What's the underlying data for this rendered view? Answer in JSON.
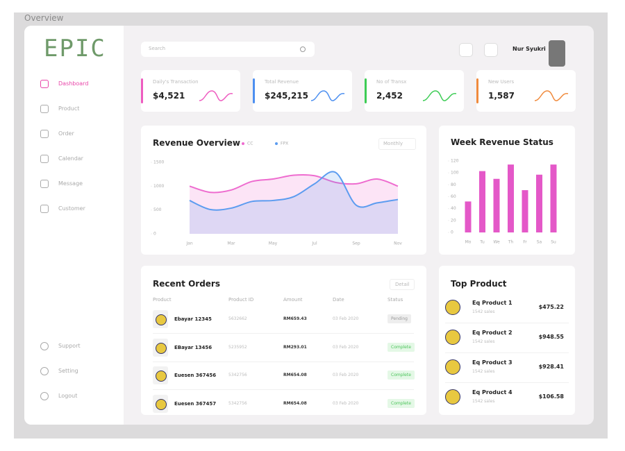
{
  "title": "Overview",
  "logo": "EPIC",
  "nav": {
    "items": [
      "Dashboard",
      "Product",
      "Order",
      "Calendar",
      "Message",
      "Customer"
    ],
    "bottom": [
      "Support",
      "Setting",
      "Logout"
    ]
  },
  "header": {
    "search": "Search",
    "user": "Nur Syukri"
  },
  "stats": [
    {
      "label": "Daily's Transaction",
      "value": "$4,521",
      "color": "#ee5cc0"
    },
    {
      "label": "Total Revenue",
      "value": "$245,215",
      "color": "#4c8ff0"
    },
    {
      "label": "No of Transx",
      "value": "2,452",
      "color": "#3dcc55"
    },
    {
      "label": "New Users",
      "value": "1,587",
      "color": "#f08a3c"
    }
  ],
  "revenue_overview": {
    "type": "line",
    "title": "Revenue Overview",
    "filter": "Monthly",
    "categories": [
      "Jan",
      null,
      "Mar",
      null,
      "May",
      null,
      "Jul",
      null,
      "Sep",
      null,
      "Nov"
    ],
    "series": [
      {
        "name": "CC",
        "color": "#ee6ccf",
        "values": [
          1000,
          870,
          920,
          1100,
          1150,
          1230,
          1220,
          1080,
          1050,
          1150,
          1000
        ]
      },
      {
        "name": "FPX",
        "color": "#5b9cf0",
        "values": [
          700,
          510,
          540,
          680,
          700,
          780,
          1050,
          1290,
          600,
          650,
          720
        ]
      }
    ],
    "ylim": [
      0,
      1500
    ],
    "yticks": [
      0,
      500,
      1000,
      1500
    ]
  },
  "week_revenue": {
    "type": "bar",
    "title": "Week Revenue Status",
    "categories": [
      "Mo",
      "Tu",
      "We",
      "Th",
      "Fr",
      "Sa",
      "Su"
    ],
    "values": [
      52,
      103,
      90,
      114,
      71,
      97,
      114
    ],
    "color": "#e458c8",
    "ylim": [
      0,
      120
    ],
    "yticks": [
      0,
      20,
      40,
      60,
      80,
      100,
      120
    ]
  },
  "orders": {
    "title": "Recent Orders",
    "button": "Detail",
    "columns": [
      "Product",
      "Product ID",
      "Amount",
      "Date",
      "Status"
    ],
    "rows": [
      [
        "Ebayar 12345",
        "5632662",
        "RM659.43",
        "03 Feb 2020",
        "Pending"
      ],
      [
        "EBayar 13456",
        "5235952",
        "RM293.01",
        "03 Feb 2020",
        "Complete"
      ],
      [
        "Euesen 367456",
        "5342756",
        "RM654.08",
        "03 Feb 2020",
        "Complete"
      ],
      [
        "Euesen 367457",
        "5342756",
        "RM654.08",
        "03 Feb 2020",
        "Complete"
      ]
    ]
  },
  "top_products": {
    "title": "Top Product",
    "items": [
      {
        "name": "Eq Product 1",
        "sales": "1542 sales",
        "price": "$475.22"
      },
      {
        "name": "Eq Product 2",
        "sales": "1542 sales",
        "price": "$948.55"
      },
      {
        "name": "Eq Product 3",
        "sales": "1542 sales",
        "price": "$928.41"
      },
      {
        "name": "Eq Product 4",
        "sales": "1542 sales",
        "price": "$106.58"
      }
    ]
  }
}
